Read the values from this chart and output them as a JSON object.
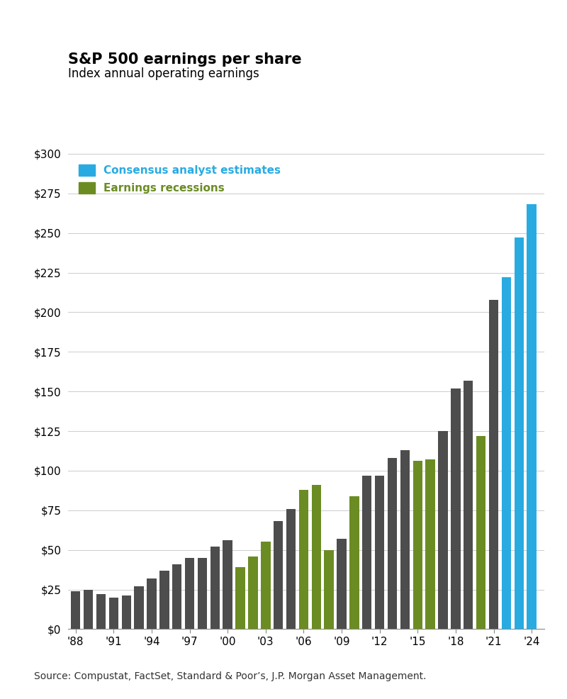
{
  "title": "S&P 500 earnings per share",
  "subtitle": "Index annual operating earnings",
  "source": "Source: Compustat, FactSet, Standard & Poor’s, J.P. Morgan Asset Management.",
  "years": [
    1988,
    1989,
    1990,
    1991,
    1992,
    1993,
    1994,
    1995,
    1996,
    1997,
    1998,
    1999,
    2000,
    2001,
    2002,
    2003,
    2004,
    2005,
    2006,
    2007,
    2008,
    2009,
    2010,
    2011,
    2012,
    2013,
    2014,
    2015,
    2016,
    2017,
    2018,
    2019,
    2020,
    2021,
    2022,
    2023,
    2024
  ],
  "eps_values": [
    24,
    25,
    22,
    20,
    21,
    27,
    32,
    37,
    41,
    45,
    45,
    52,
    56,
    39,
    46,
    55,
    68,
    76,
    88,
    91,
    50,
    57,
    84,
    97,
    97,
    108,
    113,
    106,
    107,
    125,
    152,
    157,
    122,
    208,
    222,
    247,
    268
  ],
  "recession_flags": [
    false,
    false,
    false,
    false,
    false,
    false,
    false,
    false,
    false,
    false,
    false,
    false,
    false,
    true,
    true,
    true,
    false,
    false,
    true,
    true,
    true,
    false,
    true,
    false,
    false,
    false,
    false,
    true,
    true,
    false,
    false,
    false,
    true,
    false,
    false,
    false,
    false
  ],
  "dark_color": "#4D4D4D",
  "recession_color": "#6B8C23",
  "consensus_color": "#29ABE2",
  "consensus_start_year": 2022,
  "ylim": [
    0,
    300
  ],
  "yticks": [
    0,
    25,
    50,
    75,
    100,
    125,
    150,
    175,
    200,
    225,
    250,
    275,
    300
  ],
  "xtick_labels": [
    "'88",
    "'91",
    "'94",
    "'97",
    "'00",
    "'03",
    "'06",
    "'09",
    "'12",
    "'15",
    "'18",
    "'21",
    "'24"
  ],
  "xtick_positions": [
    1988,
    1991,
    1994,
    1997,
    2000,
    2003,
    2006,
    2009,
    2012,
    2015,
    2018,
    2021,
    2024
  ],
  "legend_consensus_label": "Consensus analyst estimates",
  "legend_recession_label": "Earnings recessions",
  "background_color": "#FFFFFF",
  "grid_color": "#CCCCCC",
  "title_fontsize": 15,
  "subtitle_fontsize": 12,
  "tick_fontsize": 11,
  "source_fontsize": 10
}
